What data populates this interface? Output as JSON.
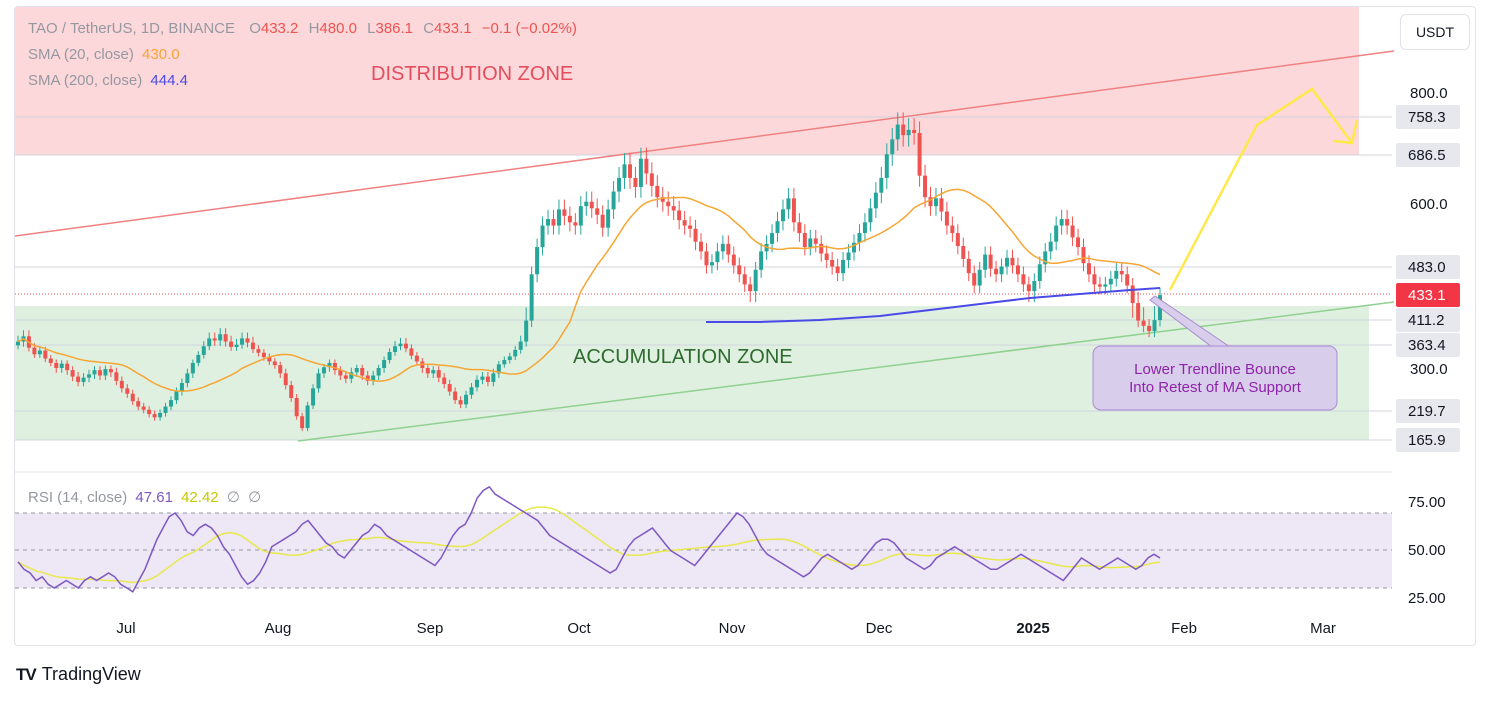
{
  "header": {
    "symbol": "TAO / TetherUS, 1D, BINANCE",
    "o_label": "O",
    "o_value": "433.2",
    "h_label": "H",
    "h_value": "480.0",
    "l_label": "L",
    "l_value": "386.1",
    "c_label": "C",
    "c_value": "433.1",
    "change": "−0.1 (−0.02%)",
    "sma20_label": "SMA (20, close)",
    "sma20_value": "430.0",
    "sma200_label": "SMA (200, close)",
    "sma200_value": "444.4",
    "rsi_label": "RSI (14, close)",
    "rsi_value": "47.61",
    "rsi_ma_value": "42.42",
    "rsi_extra1": "∅",
    "rsi_extra2": "∅"
  },
  "toolbar": {
    "currency": "USDT"
  },
  "brand": {
    "name": "TradingView",
    "logo": "TV"
  },
  "colors": {
    "up": "#26a69a",
    "down": "#ef5350",
    "sma20": "#f7a533",
    "sma200": "#4a4ae8",
    "rsi": "#7e57c2",
    "rsi_ma": "#e8e94b",
    "distribution_zone": "#fcd8db",
    "accumulation_zone": "#dff0e0",
    "projection": "#ffe94a"
  },
  "chart_data": {
    "type": "candlestick",
    "pair": "TAO/USDT",
    "interval": "1D",
    "x_ticks": [
      "Jul",
      "Aug",
      "Sep",
      "Oct",
      "Nov",
      "Dec",
      "2025",
      "Feb",
      "Mar"
    ],
    "y_ticks": [
      "800.0",
      "600.0",
      "300.0"
    ],
    "price_labels": [
      {
        "value": "758.3",
        "kind": "level"
      },
      {
        "value": "686.5",
        "kind": "level"
      },
      {
        "value": "483.0",
        "kind": "level"
      },
      {
        "value": "433.1",
        "kind": "last"
      },
      {
        "value": "411.2",
        "kind": "level"
      },
      {
        "value": "363.4",
        "kind": "level"
      },
      {
        "value": "219.7",
        "kind": "level"
      },
      {
        "value": "165.9",
        "kind": "level"
      }
    ],
    "last_close": 433.1,
    "annotations": [
      {
        "text": "DISTRIBUTION ZONE",
        "zone_from": 686.5,
        "zone_to": 1000
      },
      {
        "text": "ACCUMULATION ZONE",
        "zone_from": 165.9,
        "zone_to": 411.2
      },
      {
        "text": "Lower Trendline Bounce\nInto Retest of MA Support"
      }
    ],
    "closes": [
      370,
      380,
      356,
      338,
      348,
      326,
      314,
      300,
      312,
      296,
      284,
      274,
      282,
      288,
      296,
      286,
      298,
      292,
      276,
      262,
      252,
      238,
      228,
      222,
      214,
      208,
      216,
      228,
      240,
      256,
      272,
      290,
      314,
      336,
      360,
      376,
      372,
      384,
      370,
      358,
      364,
      376,
      368,
      352,
      342,
      330,
      318,
      308,
      290,
      268,
      244,
      210,
      188,
      230,
      262,
      290,
      302,
      314,
      296,
      286,
      280,
      292,
      300,
      286,
      276,
      286,
      300,
      322,
      344,
      360,
      366,
      354,
      334,
      318,
      300,
      290,
      296,
      282,
      270,
      256,
      240,
      232,
      250,
      264,
      278,
      284,
      274,
      290,
      310,
      322,
      332,
      350,
      370,
      410,
      470,
      520,
      560,
      572,
      560,
      590,
      578,
      566,
      560,
      596,
      604,
      592,
      580,
      556,
      590,
      622,
      646,
      670,
      646,
      630,
      680,
      654,
      632,
      612,
      604,
      596,
      588,
      570,
      560,
      554,
      530,
      512,
      486,
      492,
      512,
      526,
      506,
      486,
      470,
      452,
      440,
      478,
      512,
      526,
      546,
      568,
      590,
      610,
      566,
      546,
      520,
      536,
      526,
      508,
      496,
      484,
      472,
      496,
      510,
      528,
      546,
      566,
      592,
      620,
      646,
      688,
      716,
      744,
      724,
      734,
      728,
      650,
      612,
      596,
      610,
      586,
      560,
      546,
      522,
      498,
      472,
      450,
      478,
      506,
      480,
      470,
      484,
      500,
      486,
      470,
      452,
      440,
      458,
      488,
      512,
      530,
      560,
      572,
      560,
      538,
      520,
      490,
      470,
      452,
      448,
      452,
      462,
      476,
      470,
      450,
      426,
      410,
      400,
      390,
      411,
      433
    ],
    "sma20": [
      "computed from closes"
    ],
    "rsi_axis": {
      "ticks": [
        "75.00",
        "50.00",
        "25.00"
      ],
      "upper": 70,
      "middle": 50,
      "lower": 30
    },
    "rsi": [
      44,
      40,
      38,
      34,
      36,
      32,
      30,
      32,
      34,
      32,
      30,
      34,
      36,
      34,
      36,
      38,
      36,
      32,
      30,
      28,
      34,
      40,
      48,
      56,
      62,
      68,
      70,
      66,
      60,
      58,
      62,
      64,
      62,
      58,
      52,
      48,
      42,
      36,
      32,
      34,
      38,
      44,
      52,
      54,
      56,
      58,
      60,
      64,
      66,
      62,
      58,
      54,
      52,
      48,
      46,
      50,
      54,
      58,
      60,
      64,
      62,
      58,
      56,
      54,
      52,
      50,
      48,
      46,
      44,
      42,
      46,
      52,
      58,
      62,
      64,
      70,
      78,
      82,
      84,
      80,
      78,
      76,
      74,
      72,
      70,
      68,
      66,
      62,
      58,
      56,
      54,
      52,
      50,
      48,
      46,
      44,
      42,
      40,
      38,
      40,
      46,
      52,
      56,
      58,
      60,
      62,
      58,
      54,
      50,
      48,
      46,
      44,
      42,
      46,
      50,
      54,
      58,
      62,
      66,
      70,
      68,
      64,
      58,
      52,
      48,
      46,
      44,
      42,
      40,
      38,
      36,
      38,
      42,
      46,
      48,
      46,
      44,
      42,
      40,
      42,
      46,
      50,
      54,
      56,
      56,
      54,
      50,
      46,
      44,
      42,
      40,
      42,
      46,
      48,
      50,
      52,
      50,
      48,
      46,
      44,
      42,
      40,
      40,
      42,
      44,
      46,
      48,
      46,
      44,
      42,
      40,
      38,
      36,
      34,
      38,
      42,
      46,
      44,
      42,
      40,
      42,
      44,
      46,
      44,
      42,
      40,
      42,
      46,
      48,
      46
    ],
    "projection": {
      "from": 433.1,
      "peak": 800,
      "to": 690
    }
  }
}
